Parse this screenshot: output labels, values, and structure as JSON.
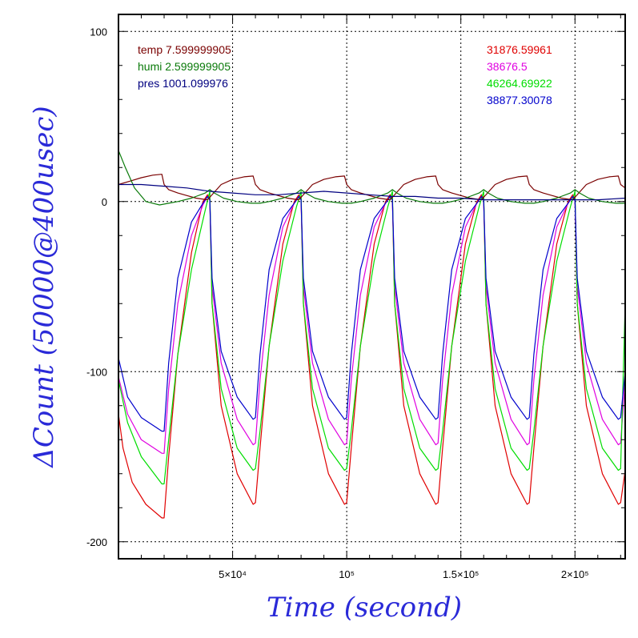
{
  "chart_data": {
    "type": "line",
    "xlabel": "Time (second)",
    "ylabel": "ΔCount (50000@400usec)",
    "xlim": [
      0,
      222000
    ],
    "ylim": [
      -210,
      110
    ],
    "grid": true,
    "x_ticks": [
      {
        "value": 50000,
        "label": "5×10⁴"
      },
      {
        "value": 100000,
        "label": "10⁵"
      },
      {
        "value": 150000,
        "label": "1.5×10⁵"
      },
      {
        "value": 200000,
        "label": "2×10⁵"
      }
    ],
    "y_ticks": [
      {
        "value": 100,
        "label": "100"
      },
      {
        "value": 0,
        "label": "0"
      },
      {
        "value": -100,
        "label": "-100"
      },
      {
        "value": -200,
        "label": "-200"
      }
    ],
    "legend_left": [
      {
        "text": "temp 7.599999905",
        "color": "#7a0000"
      },
      {
        "text": "humi 2.599999905",
        "color": "#0a7a0a"
      },
      {
        "text": "pres 1001.099976",
        "color": "#000080"
      }
    ],
    "legend_right": [
      {
        "text": "31876.59961",
        "color": "#e00000"
      },
      {
        "text": "38676.5",
        "color": "#e000e0"
      },
      {
        "text": "46264.69922",
        "color": "#00dd00"
      },
      {
        "text": "38877.30078",
        "color": "#0000cc"
      }
    ],
    "series": [
      {
        "color": "#e00000",
        "x": [
          0,
          2000,
          6000,
          12000,
          19000,
          20000,
          22000,
          26000,
          32000,
          37000,
          39000,
          40000,
          41000,
          45000,
          52000,
          59000,
          60000,
          62000,
          66000,
          72000,
          77000,
          79000,
          80000,
          81000,
          85000,
          92000,
          99000,
          100000,
          102000,
          106000,
          112000,
          117000,
          119000,
          120000,
          121000,
          125000,
          132000,
          139000,
          140000,
          142000,
          146000,
          152000,
          157000,
          159000,
          160000,
          161000,
          165000,
          172000,
          179000,
          180000,
          182000,
          186000,
          192000,
          197000,
          199000,
          200000,
          201000,
          205000,
          212000,
          219000,
          220000,
          222000
        ],
        "y": [
          -125,
          -145,
          -165,
          -178,
          -186,
          -186,
          -150,
          -90,
          -30,
          0,
          4,
          2,
          -60,
          -120,
          -160,
          -178,
          -177,
          -145,
          -85,
          -25,
          0,
          4,
          2,
          -60,
          -120,
          -160,
          -178,
          -177,
          -145,
          -85,
          -25,
          0,
          4,
          2,
          -60,
          -120,
          -160,
          -178,
          -177,
          -145,
          -85,
          -25,
          0,
          4,
          2,
          -60,
          -120,
          -160,
          -178,
          -177,
          -145,
          -85,
          -25,
          0,
          4,
          2,
          -60,
          -120,
          -160,
          -178,
          -177,
          -158
        ]
      },
      {
        "color": "#e000e0",
        "x": [
          0,
          4000,
          10000,
          19000,
          20000,
          22000,
          26000,
          32000,
          37000,
          39000,
          40000,
          41000,
          45000,
          52000,
          59000,
          60000,
          62000,
          66000,
          72000,
          77000,
          79000,
          80000,
          81000,
          85000,
          92000,
          99000,
          100000,
          102000,
          106000,
          112000,
          117000,
          119000,
          120000,
          121000,
          125000,
          132000,
          139000,
          140000,
          142000,
          146000,
          152000,
          157000,
          159000,
          160000,
          161000,
          165000,
          172000,
          179000,
          180000,
          182000,
          186000,
          192000,
          197000,
          199000,
          200000,
          201000,
          205000,
          212000,
          219000,
          220000,
          222000
        ],
        "y": [
          -103,
          -125,
          -140,
          -148,
          -148,
          -110,
          -60,
          -20,
          -2,
          3,
          1,
          -50,
          -95,
          -128,
          -143,
          -142,
          -105,
          -55,
          -15,
          -1,
          3,
          1,
          -50,
          -95,
          -128,
          -143,
          -142,
          -105,
          -55,
          -15,
          -1,
          3,
          1,
          -50,
          -95,
          -128,
          -143,
          -142,
          -105,
          -55,
          -15,
          -1,
          3,
          1,
          -50,
          -95,
          -128,
          -143,
          -142,
          -105,
          -55,
          -15,
          -1,
          3,
          1,
          -50,
          -95,
          -128,
          -143,
          -142,
          -105
        ]
      },
      {
        "color": "#00dd00",
        "x": [
          0,
          4000,
          10000,
          19000,
          20000,
          22000,
          26000,
          32000,
          38000,
          40000,
          41000,
          45000,
          52000,
          59000,
          60000,
          62000,
          66000,
          72000,
          78000,
          80000,
          81000,
          85000,
          92000,
          99000,
          100000,
          102000,
          106000,
          112000,
          118000,
          120000,
          121000,
          125000,
          132000,
          139000,
          140000,
          142000,
          146000,
          152000,
          158000,
          160000,
          161000,
          165000,
          172000,
          179000,
          180000,
          182000,
          186000,
          192000,
          198000,
          200000,
          201000,
          205000,
          212000,
          219000,
          220000,
          222000
        ],
        "y": [
          -105,
          -130,
          -150,
          -166,
          -166,
          -140,
          -90,
          -40,
          -5,
          6,
          -60,
          -110,
          -145,
          -158,
          -157,
          -135,
          -85,
          -35,
          -3,
          6,
          -60,
          -110,
          -145,
          -158,
          -157,
          -135,
          -85,
          -35,
          -3,
          6,
          -60,
          -110,
          -145,
          -158,
          -157,
          -135,
          -85,
          -35,
          -3,
          6,
          -60,
          -110,
          -145,
          -158,
          -157,
          -135,
          -85,
          -35,
          -3,
          6,
          -60,
          -110,
          -145,
          -158,
          -157,
          -60
        ]
      },
      {
        "color": "#0000cc",
        "x": [
          0,
          4000,
          10000,
          19000,
          20000,
          22000,
          26000,
          32000,
          37000,
          39000,
          40000,
          41000,
          45000,
          52000,
          59000,
          60000,
          62000,
          66000,
          72000,
          77000,
          79000,
          80000,
          81000,
          85000,
          92000,
          99000,
          100000,
          102000,
          106000,
          112000,
          117000,
          119000,
          120000,
          121000,
          125000,
          132000,
          139000,
          140000,
          142000,
          146000,
          152000,
          157000,
          159000,
          160000,
          161000,
          165000,
          172000,
          179000,
          180000,
          182000,
          186000,
          192000,
          197000,
          199000,
          200000,
          201000,
          205000,
          212000,
          219000,
          220000,
          222000
        ],
        "y": [
          -92,
          -115,
          -127,
          -135,
          -135,
          -95,
          -45,
          -12,
          -1,
          3,
          1,
          -45,
          -88,
          -115,
          -128,
          -127,
          -90,
          -40,
          -10,
          -1,
          3,
          1,
          -45,
          -88,
          -115,
          -128,
          -127,
          -90,
          -40,
          -10,
          -1,
          3,
          1,
          -45,
          -88,
          -115,
          -128,
          -127,
          -90,
          -40,
          -10,
          -1,
          3,
          1,
          -45,
          -88,
          -115,
          -128,
          -127,
          -90,
          -40,
          -10,
          -1,
          3,
          1,
          -45,
          -88,
          -115,
          -128,
          -127,
          -100
        ]
      },
      {
        "color": "#7a0000",
        "x": [
          0,
          5000,
          10000,
          15000,
          19000,
          20000,
          22000,
          26000,
          30000,
          34000,
          39000,
          45000,
          50000,
          55000,
          59000,
          60000,
          62000,
          66000,
          70000,
          74000,
          79000,
          85000,
          90000,
          95000,
          99000,
          100000,
          102000,
          106000,
          110000,
          114000,
          119000,
          125000,
          130000,
          135000,
          139000,
          140000,
          142000,
          146000,
          150000,
          154000,
          159000,
          165000,
          170000,
          175000,
          179000,
          180000,
          182000,
          186000,
          190000,
          194000,
          199000,
          205000,
          210000,
          215000,
          219000,
          220000,
          222000
        ],
        "y": [
          10,
          12,
          14,
          15.5,
          16,
          10,
          7,
          5,
          3.5,
          2,
          1,
          10,
          13,
          14.5,
          15,
          10,
          7,
          5,
          3.5,
          2,
          1,
          10,
          13,
          14.5,
          15,
          10,
          7,
          5,
          3.5,
          2,
          1,
          10,
          13,
          14.5,
          15,
          10,
          7,
          5,
          3.5,
          2,
          1,
          10,
          13,
          14.5,
          15,
          10,
          7,
          5,
          3.5,
          2,
          1,
          10,
          13,
          14.5,
          15,
          10,
          8
        ]
      },
      {
        "color": "#0a7a0a",
        "x": [
          0,
          3000,
          7000,
          12000,
          18000,
          22000,
          26000,
          32000,
          38000,
          40000,
          42000,
          46000,
          52000,
          58000,
          62000,
          66000,
          72000,
          78000,
          80000,
          82000,
          86000,
          92000,
          98000,
          102000,
          106000,
          112000,
          118000,
          120000,
          122000,
          126000,
          132000,
          138000,
          142000,
          146000,
          152000,
          158000,
          160000,
          162000,
          166000,
          172000,
          178000,
          182000,
          186000,
          192000,
          198000,
          200000,
          202000,
          206000,
          212000,
          218000,
          222000
        ],
        "y": [
          30,
          20,
          8,
          0,
          -2,
          -1,
          0,
          2,
          5,
          7,
          5,
          2,
          0,
          -1,
          -1,
          0,
          2,
          5,
          7,
          5,
          2,
          0,
          -1,
          -1,
          0,
          2,
          5,
          7,
          5,
          2,
          0,
          -1,
          -1,
          0,
          2,
          5,
          7,
          5,
          2,
          0,
          -1,
          -1,
          0,
          2,
          5,
          7,
          5,
          2,
          0,
          -1,
          -1
        ]
      },
      {
        "color": "#000080",
        "x": [
          0,
          10000,
          20000,
          30000,
          40000,
          50000,
          60000,
          70000,
          80000,
          90000,
          100000,
          110000,
          120000,
          130000,
          140000,
          150000,
          160000,
          170000,
          180000,
          190000,
          200000,
          210000,
          222000
        ],
        "y": [
          10,
          10,
          9,
          8,
          6,
          5,
          4,
          4,
          5,
          6,
          5,
          4,
          3,
          3,
          2,
          2,
          1,
          1,
          1,
          1,
          1,
          1,
          2
        ]
      }
    ]
  }
}
